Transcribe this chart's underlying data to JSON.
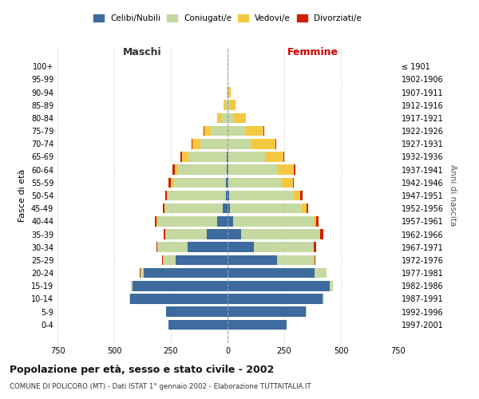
{
  "age_groups": [
    "0-4",
    "5-9",
    "10-14",
    "15-19",
    "20-24",
    "25-29",
    "30-34",
    "35-39",
    "40-44",
    "45-49",
    "50-54",
    "55-59",
    "60-64",
    "65-69",
    "70-74",
    "75-79",
    "80-84",
    "85-89",
    "90-94",
    "95-99",
    "100+"
  ],
  "birth_years": [
    "1997-2001",
    "1992-1996",
    "1987-1991",
    "1982-1986",
    "1977-1981",
    "1972-1976",
    "1967-1971",
    "1962-1966",
    "1957-1961",
    "1952-1956",
    "1947-1951",
    "1942-1946",
    "1937-1941",
    "1932-1936",
    "1927-1931",
    "1922-1926",
    "1917-1921",
    "1912-1916",
    "1907-1911",
    "1902-1906",
    "≤ 1901"
  ],
  "males": {
    "celibe": [
      260,
      270,
      430,
      420,
      370,
      230,
      175,
      90,
      45,
      20,
      8,
      6,
      4,
      2,
      1,
      0,
      0,
      0,
      0,
      0,
      0
    ],
    "coniugato": [
      0,
      0,
      2,
      5,
      15,
      55,
      135,
      185,
      265,
      255,
      255,
      235,
      215,
      170,
      120,
      75,
      25,
      8,
      3,
      0,
      0
    ],
    "vedovo": [
      0,
      0,
      0,
      0,
      0,
      0,
      0,
      0,
      2,
      3,
      5,
      10,
      15,
      30,
      35,
      28,
      20,
      8,
      2,
      0,
      0
    ],
    "divorziato": [
      0,
      0,
      0,
      0,
      2,
      2,
      5,
      8,
      10,
      8,
      8,
      8,
      8,
      5,
      3,
      2,
      2,
      2,
      0,
      0,
      0
    ]
  },
  "females": {
    "nubile": [
      260,
      345,
      420,
      450,
      385,
      220,
      115,
      60,
      25,
      12,
      7,
      4,
      3,
      2,
      1,
      0,
      0,
      0,
      0,
      0,
      0
    ],
    "coniugata": [
      0,
      2,
      5,
      15,
      50,
      165,
      265,
      345,
      355,
      315,
      285,
      235,
      215,
      165,
      100,
      80,
      25,
      10,
      5,
      2,
      0
    ],
    "vedova": [
      0,
      0,
      0,
      0,
      0,
      0,
      2,
      5,
      10,
      20,
      30,
      50,
      75,
      80,
      110,
      80,
      55,
      25,
      10,
      2,
      2
    ],
    "divorziata": [
      0,
      0,
      0,
      0,
      2,
      3,
      8,
      12,
      12,
      8,
      8,
      5,
      8,
      3,
      3,
      2,
      2,
      0,
      0,
      0,
      0
    ]
  },
  "color_celibe": "#3d6b9e",
  "color_coniugato": "#c5d9a0",
  "color_vedovo": "#f5c842",
  "color_divorziato": "#cc2200",
  "xlim": 750,
  "title": "Popolazione per età, sesso e stato civile - 2002",
  "subtitle": "COMUNE DI POLICORO (MT) - Dati ISTAT 1° gennaio 2002 - Elaborazione TUTTAITALIA.IT",
  "ylabel_left": "Fasce di età",
  "ylabel_right": "Anni di nascita",
  "xlabel_left": "Maschi",
  "xlabel_right": "Femmine",
  "background_color": "#ffffff",
  "grid_color": "#cccccc"
}
